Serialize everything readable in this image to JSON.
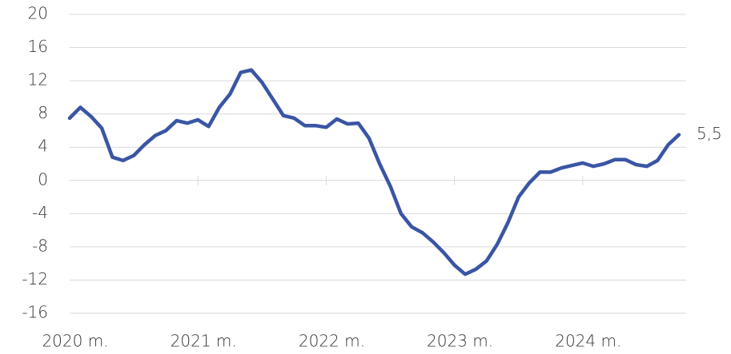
{
  "chart_data": {
    "type": "line",
    "categories": [
      "2020 m.",
      null,
      null,
      null,
      null,
      null,
      null,
      null,
      null,
      null,
      null,
      null,
      "2021 m.",
      null,
      null,
      null,
      null,
      null,
      null,
      null,
      null,
      null,
      null,
      null,
      "2022 m.",
      null,
      null,
      null,
      null,
      null,
      null,
      null,
      null,
      null,
      null,
      null,
      "2023 m.",
      null,
      null,
      null,
      null,
      null,
      null,
      null,
      null,
      null,
      null,
      null,
      "2024 m.",
      null,
      null,
      null,
      null,
      null,
      null,
      null,
      null,
      null
    ],
    "series": [
      {
        "color": "#3a55a4",
        "values": [
          7.5,
          8.8,
          7.7,
          6.3,
          2.8,
          2.4,
          3.0,
          4.3,
          5.4,
          6.0,
          7.2,
          6.9,
          7.3,
          6.5,
          8.8,
          10.4,
          13.0,
          13.3,
          11.8,
          9.8,
          7.8,
          7.5,
          6.6,
          6.6,
          6.4,
          7.4,
          6.8,
          6.9,
          5.1,
          2.0,
          -0.7,
          -4.0,
          -5.6,
          -6.3,
          -7.4,
          -8.7,
          -10.2,
          -11.3,
          -10.7,
          -9.7,
          -7.7,
          -5.1,
          -2.0,
          -0.3,
          1.0,
          1.0,
          1.5,
          1.8,
          2.1,
          1.7,
          2.0,
          2.5,
          2.5,
          1.9,
          1.7,
          2.4,
          4.3,
          5.5
        ],
        "value_labels": [
          null,
          null,
          null,
          null,
          null,
          null,
          null,
          null,
          null,
          null,
          null,
          null,
          null,
          null,
          null,
          null,
          null,
          null,
          null,
          null,
          null,
          null,
          null,
          null,
          null,
          null,
          null,
          null,
          null,
          null,
          null,
          null,
          null,
          null,
          null,
          null,
          null,
          null,
          null,
          null,
          null,
          null,
          null,
          null,
          null,
          null,
          null,
          null,
          null,
          null,
          null,
          null,
          null,
          null,
          null,
          null,
          null,
          "5,5"
        ]
      }
    ],
    "ylim": [
      -16,
      20
    ],
    "yticks": [
      -16,
      -12,
      -8,
      -4,
      0,
      4,
      8,
      12,
      16,
      20
    ],
    "grid": true
  }
}
